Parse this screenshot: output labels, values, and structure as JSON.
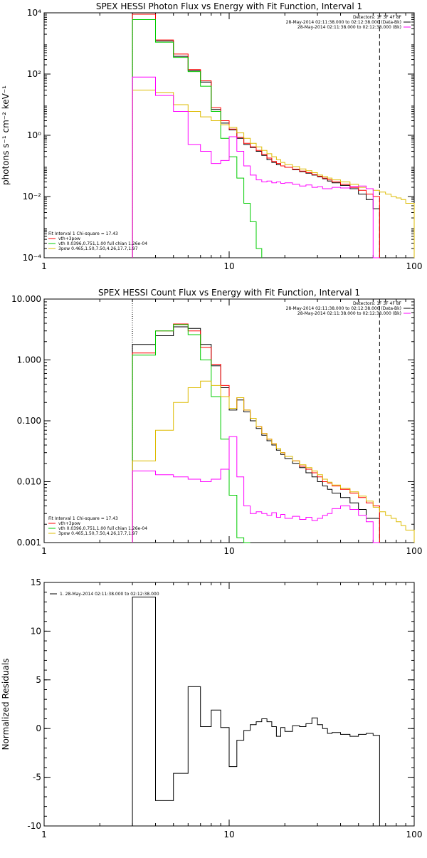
{
  "chart_data": [
    {
      "type": "line",
      "title": "SPEX HESSI Photon Flux vs Energy with Fit Function, Interval 1",
      "ylabel": "photons s⁻¹ cm⁻² keV⁻¹",
      "xlabel": "",
      "xscale": "log",
      "yscale": "log",
      "xlim": [
        1,
        100
      ],
      "ylim": [
        0.0001,
        10000
      ],
      "x_ticks": [
        1,
        10,
        100
      ],
      "x_tick_labels": [
        "1",
        "10",
        "100"
      ],
      "y_ticks": [
        0.0001,
        0.01,
        1,
        100,
        10000
      ],
      "y_tick_labels": [
        "10⁻⁴",
        "10⁻²",
        "10⁰",
        "10²",
        "10⁴"
      ],
      "vlines": [
        {
          "x": 3,
          "style": "dotted",
          "color": "#000000"
        },
        {
          "x": 65,
          "style": "dashed",
          "color": "#000000"
        }
      ],
      "legend_top_right": [
        "Detectors: 1F 3F 4F 8F",
        "28-May-2014 02:11:38.000 to 02:12:38.000 (Data-Bk)",
        "28-May-2014 02:11:38.000 to 02:12:38.000 (Bk)"
      ],
      "legend_bottom_left": [
        "Fit Interval 1   Chi-square = 17.43",
        "vth+3pow",
        "vth 0.0396,0.751,1.00  full chian 1.26e-04",
        "3pow 0.465,1.50,7.50,4.26,17.7,1.97"
      ],
      "series": [
        {
          "name": "Data-Bk",
          "color": "#000000",
          "edges": [
            3,
            4,
            5,
            6,
            7,
            8,
            9,
            10,
            11,
            12,
            13,
            14,
            15,
            16,
            17,
            18,
            19,
            20,
            22,
            24,
            26,
            28,
            30,
            32,
            34,
            36,
            40,
            45,
            50,
            55,
            60,
            65
          ],
          "values": [
            10000,
            1200,
            380,
            130,
            55,
            7,
            2.5,
            1.5,
            0.8,
            0.5,
            0.4,
            0.3,
            0.22,
            0.16,
            0.13,
            0.11,
            0.1,
            0.09,
            0.075,
            0.065,
            0.058,
            0.05,
            0.044,
            0.038,
            0.032,
            0.028,
            0.023,
            0.018,
            0.012,
            0.008,
            0.004
          ]
        },
        {
          "name": "vth+3pow",
          "color": "#ff0000",
          "edges": [
            3,
            4,
            5,
            6,
            7,
            8,
            9,
            10,
            11,
            12,
            13,
            14,
            15,
            16,
            17,
            18,
            19,
            20,
            22,
            24,
            26,
            28,
            30,
            32,
            34,
            36,
            40,
            45,
            50,
            55,
            60,
            65
          ],
          "values": [
            9000,
            1300,
            450,
            140,
            60,
            8,
            3,
            1.6,
            0.85,
            0.55,
            0.42,
            0.32,
            0.24,
            0.18,
            0.14,
            0.12,
            0.1,
            0.09,
            0.078,
            0.068,
            0.06,
            0.052,
            0.046,
            0.04,
            0.035,
            0.03,
            0.025,
            0.02,
            0.016,
            0.012,
            0.01
          ]
        },
        {
          "name": "vth",
          "color": "#00cc00",
          "edges": [
            3,
            4,
            5,
            6,
            7,
            8,
            9,
            10,
            11,
            12,
            13,
            14,
            15
          ],
          "values": [
            6000,
            1100,
            350,
            120,
            40,
            6,
            0.8,
            0.2,
            0.04,
            0.006,
            0.0015,
            0.0002
          ]
        },
        {
          "name": "3pow",
          "color": "#ddbb00",
          "edges": [
            3,
            4,
            5,
            6,
            7,
            8,
            9,
            10,
            11,
            12,
            13,
            14,
            15,
            16,
            17,
            18,
            19,
            20,
            22,
            24,
            26,
            28,
            30,
            32,
            34,
            36,
            40,
            45,
            50,
            55,
            60,
            65,
            70,
            75,
            80,
            85,
            90,
            100
          ],
          "values": [
            30,
            25,
            10,
            6,
            4,
            3,
            2.2,
            1.8,
            1.2,
            0.8,
            0.55,
            0.42,
            0.32,
            0.25,
            0.2,
            0.16,
            0.13,
            0.11,
            0.095,
            0.08,
            0.07,
            0.06,
            0.05,
            0.045,
            0.04,
            0.035,
            0.03,
            0.025,
            0.02,
            0.018,
            0.016,
            0.014,
            0.012,
            0.01,
            0.009,
            0.008,
            0.006
          ]
        },
        {
          "name": "Bk",
          "color": "#ff00ff",
          "edges": [
            3,
            4,
            5,
            6,
            7,
            8,
            9,
            10,
            11,
            12,
            13,
            14,
            15,
            16,
            17,
            18,
            19,
            20,
            22,
            24,
            26,
            28,
            30,
            32,
            34,
            36,
            40,
            45,
            50,
            55,
            60,
            65
          ],
          "values": [
            80,
            20,
            6,
            0.5,
            0.3,
            0.12,
            0.15,
            0.9,
            0.3,
            0.1,
            0.05,
            0.035,
            0.03,
            0.032,
            0.028,
            0.03,
            0.027,
            0.028,
            0.025,
            0.022,
            0.024,
            0.02,
            0.021,
            0.018,
            0.018,
            0.02,
            0.019,
            0.021,
            0.022,
            0.018,
            0.0001
          ]
        }
      ]
    },
    {
      "type": "line",
      "title": "SPEX HESSI Count Flux vs Energy with Fit Function, Interval 1",
      "ylabel": "",
      "xlabel": "",
      "xscale": "log",
      "yscale": "log",
      "xlim": [
        1,
        100
      ],
      "ylim": [
        0.001,
        10
      ],
      "x_ticks": [
        1,
        10,
        100
      ],
      "x_tick_labels": [
        "1",
        "10",
        "100"
      ],
      "y_ticks": [
        0.001,
        0.01,
        0.1,
        1,
        10
      ],
      "y_tick_labels": [
        "0.001",
        "0.010",
        "0.100",
        "1.000",
        "10.000"
      ],
      "vlines": [
        {
          "x": 3,
          "style": "dotted",
          "color": "#000000"
        },
        {
          "x": 65,
          "style": "dashed",
          "color": "#000000"
        }
      ],
      "legend_top_right": [
        "Detectors: 1F 3F 4F 8F",
        "28-May-2014 02:11:38.000 to 02:12:38.000 (Data-Bk)",
        "28-May-2014 02:11:38.000 to 02:12:38.000 (Bk)"
      ],
      "legend_bottom_left": [
        "Fit Interval 1   Chi-square = 17.43",
        "vth+3pow",
        "vth 0.0396,0.751,1.00  full chian 1.26e-04",
        "3pow 0.465,1.50,7.50,4.26,17.7,1.97"
      ],
      "series": [
        {
          "name": "Data-Bk",
          "color": "#000000",
          "edges": [
            3,
            4,
            5,
            6,
            7,
            8,
            9,
            10,
            11,
            12,
            13,
            14,
            15,
            16,
            17,
            18,
            19,
            20,
            22,
            24,
            26,
            28,
            30,
            32,
            34,
            36,
            40,
            45,
            50,
            55,
            60,
            65
          ],
          "values": [
            1.8,
            2.5,
            3.5,
            3.3,
            1.8,
            0.8,
            0.35,
            0.15,
            0.22,
            0.14,
            0.1,
            0.075,
            0.058,
            0.047,
            0.04,
            0.033,
            0.028,
            0.024,
            0.02,
            0.017,
            0.014,
            0.012,
            0.01,
            0.0085,
            0.0075,
            0.0065,
            0.0055,
            0.0045,
            0.0035,
            0.0025,
            0.0025
          ]
        },
        {
          "name": "vth+3pow",
          "color": "#ff0000",
          "edges": [
            3,
            4,
            5,
            6,
            7,
            8,
            9,
            10,
            11,
            12,
            13,
            14,
            15,
            16,
            17,
            18,
            19,
            20,
            22,
            24,
            26,
            28,
            30,
            32,
            34,
            36,
            40,
            45,
            50,
            55,
            60,
            65
          ],
          "values": [
            1.3,
            3.0,
            3.9,
            3.0,
            1.6,
            0.85,
            0.38,
            0.16,
            0.24,
            0.15,
            0.11,
            0.08,
            0.062,
            0.05,
            0.042,
            0.035,
            0.03,
            0.026,
            0.022,
            0.018,
            0.016,
            0.014,
            0.012,
            0.01,
            0.0095,
            0.0085,
            0.0075,
            0.0065,
            0.0055,
            0.0045,
            0.004
          ]
        },
        {
          "name": "vth",
          "color": "#00cc00",
          "edges": [
            3,
            4,
            5,
            6,
            7,
            8,
            9,
            10,
            11,
            12,
            13
          ],
          "values": [
            1.2,
            3.0,
            3.8,
            2.6,
            1.0,
            0.25,
            0.05,
            0.006,
            0.0012,
            0.0001
          ]
        },
        {
          "name": "3pow",
          "color": "#ddbb00",
          "edges": [
            3,
            4,
            5,
            6,
            7,
            8,
            9,
            10,
            11,
            12,
            13,
            14,
            15,
            16,
            17,
            18,
            19,
            20,
            22,
            24,
            26,
            28,
            30,
            32,
            34,
            36,
            40,
            45,
            50,
            55,
            60,
            65,
            70,
            75,
            80,
            85,
            90,
            100
          ],
          "values": [
            0.022,
            0.07,
            0.2,
            0.35,
            0.45,
            0.38,
            0.25,
            0.16,
            0.24,
            0.15,
            0.11,
            0.08,
            0.062,
            0.05,
            0.042,
            0.035,
            0.03,
            0.026,
            0.022,
            0.019,
            0.017,
            0.015,
            0.013,
            0.011,
            0.0098,
            0.0088,
            0.0078,
            0.0068,
            0.0058,
            0.0048,
            0.0038,
            0.0032,
            0.0028,
            0.0025,
            0.0022,
            0.0019,
            0.0016
          ]
        },
        {
          "name": "Bk",
          "color": "#ff00ff",
          "edges": [
            3,
            4,
            5,
            6,
            7,
            8,
            9,
            10,
            11,
            12,
            13,
            14,
            15,
            16,
            17,
            18,
            19,
            20,
            22,
            24,
            26,
            28,
            30,
            32,
            34,
            36,
            40,
            45,
            50,
            55,
            60,
            65
          ],
          "values": [
            0.015,
            0.013,
            0.012,
            0.011,
            0.01,
            0.011,
            0.016,
            0.055,
            0.012,
            0.004,
            0.003,
            0.0032,
            0.003,
            0.0028,
            0.0031,
            0.0026,
            0.0029,
            0.0025,
            0.0027,
            0.0024,
            0.0026,
            0.0023,
            0.0025,
            0.0028,
            0.003,
            0.0036,
            0.004,
            0.0035,
            0.0028,
            0.0022,
            0.0001
          ]
        }
      ]
    },
    {
      "type": "line",
      "title": "",
      "ylabel": "Normalized Residuals",
      "xlabel": "",
      "xscale": "log",
      "yscale": "linear",
      "xlim": [
        1,
        100
      ],
      "ylim": [
        -10,
        15
      ],
      "x_ticks": [
        1,
        10,
        100
      ],
      "x_tick_labels": [
        "1",
        "10",
        "100"
      ],
      "y_ticks": [
        -10,
        -5,
        0,
        5,
        10,
        15
      ],
      "y_tick_labels": [
        "-10",
        "-5",
        "0",
        "5",
        "10",
        "15"
      ],
      "legend_top_left": [
        "1. 28-May-2014 02:11:38.000 to 02:12:38.000"
      ],
      "series": [
        {
          "name": "1. 28-May-2014 02:11:38.000 to 02:12:38.000",
          "color": "#000000",
          "edges": [
            3,
            4,
            5,
            6,
            7,
            8,
            9,
            10,
            11,
            12,
            13,
            14,
            15,
            16,
            17,
            18,
            19,
            20,
            22,
            24,
            26,
            28,
            30,
            32,
            34,
            36,
            40,
            45,
            50,
            55,
            60,
            65
          ],
          "values": [
            13.5,
            -7.4,
            -4.6,
            4.3,
            0.2,
            1.9,
            0.1,
            -3.9,
            -1.2,
            -0.2,
            0.4,
            0.7,
            1.0,
            0.7,
            0.2,
            -0.8,
            0.1,
            -0.3,
            0.3,
            0.2,
            0.5,
            1.1,
            0.4,
            0.0,
            -0.5,
            -0.4,
            -0.6,
            -0.8,
            -0.6,
            -0.5,
            -0.7
          ]
        }
      ]
    }
  ]
}
